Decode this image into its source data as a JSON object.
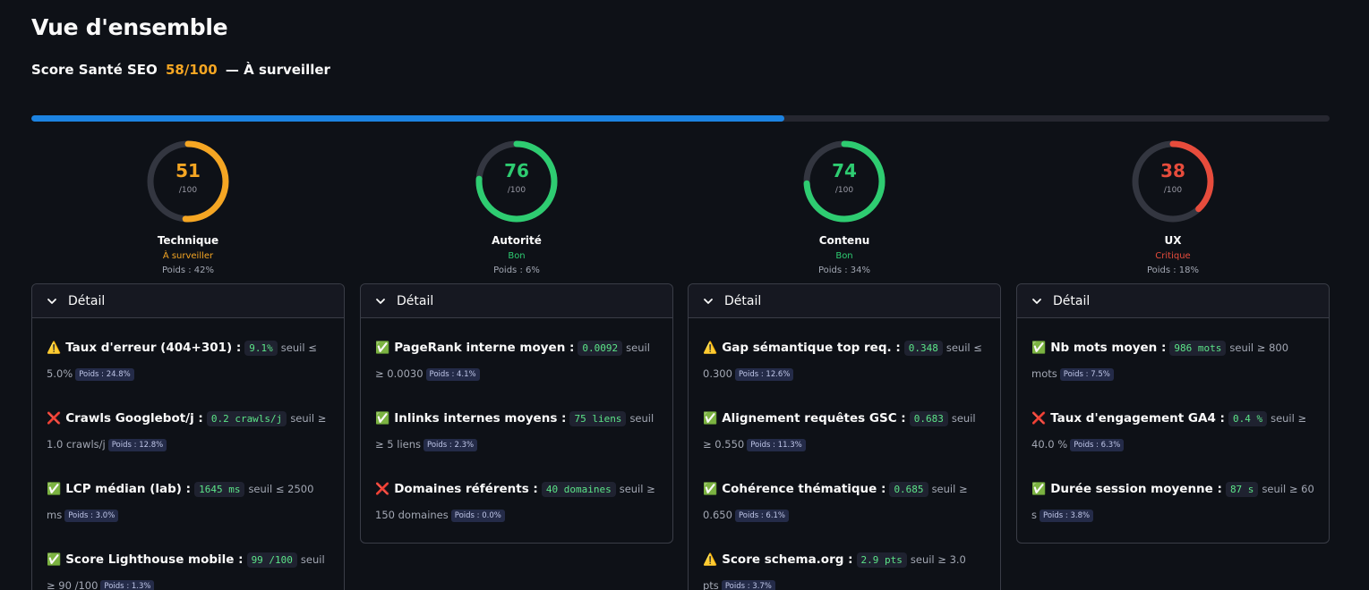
{
  "page": {
    "title": "Vue d'ensemble",
    "score_label": "Score Santé SEO",
    "score_value": "58/100",
    "score_separator": "—",
    "score_status": "À surveiller",
    "progress": 0.58,
    "progress_color": "#1c83e1"
  },
  "categories": [
    {
      "name": "Technique",
      "score": "51",
      "max": "/100",
      "value": 51,
      "status": "À surveiller",
      "color": "#f5a623",
      "weight": "Poids : 42%",
      "detail_label": "Détail",
      "metrics": [
        {
          "icon": "⚠️",
          "icon_name": "warning-icon",
          "name": "Taux d'erreur (404+301) :",
          "value": "9.1%",
          "threshold": "seuil ≤ 5.0%",
          "weight": "Poids : 24.8%"
        },
        {
          "icon": "❌",
          "icon_name": "cross-icon",
          "name": "Crawls Googlebot/j :",
          "value": "0.2 crawls/j",
          "threshold": "seuil ≥ 1.0 crawls/j",
          "weight": "Poids : 12.8%"
        },
        {
          "icon": "✅",
          "icon_name": "check-icon",
          "name": "LCP médian (lab) :",
          "value": "1645 ms",
          "threshold": "seuil ≤ 2500 ms",
          "weight": "Poids : 3.0%"
        },
        {
          "icon": "✅",
          "icon_name": "check-icon",
          "name": "Score Lighthouse mobile :",
          "value": "99 /100",
          "threshold": "seuil ≥ 90 /100",
          "weight": "Poids : 1.3%"
        }
      ]
    },
    {
      "name": "Autorité",
      "score": "76",
      "max": "/100",
      "value": 76,
      "status": "Bon",
      "color": "#2ecc71",
      "weight": "Poids : 6%",
      "detail_label": "Détail",
      "metrics": [
        {
          "icon": "✅",
          "icon_name": "check-icon",
          "name": "PageRank interne moyen :",
          "value": "0.0092",
          "threshold": "seuil ≥ 0.0030",
          "weight": "Poids : 4.1%"
        },
        {
          "icon": "✅",
          "icon_name": "check-icon",
          "name": "Inlinks internes moyens :",
          "value": "75 liens",
          "threshold": "seuil ≥ 5 liens",
          "weight": "Poids : 2.3%"
        },
        {
          "icon": "❌",
          "icon_name": "cross-icon",
          "name": "Domaines référents :",
          "value": "40 domaines",
          "threshold": "seuil ≥ 150 domaines",
          "weight": "Poids : 0.0%"
        }
      ]
    },
    {
      "name": "Contenu",
      "score": "74",
      "max": "/100",
      "value": 74,
      "status": "Bon",
      "color": "#2ecc71",
      "weight": "Poids : 34%",
      "detail_label": "Détail",
      "metrics": [
        {
          "icon": "⚠️",
          "icon_name": "warning-icon",
          "name": "Gap sémantique top req. :",
          "value": "0.348",
          "threshold": "seuil ≤ 0.300",
          "weight": "Poids : 12.6%"
        },
        {
          "icon": "✅",
          "icon_name": "check-icon",
          "name": "Alignement requêtes GSC :",
          "value": "0.683",
          "threshold": "seuil ≥ 0.550",
          "weight": "Poids : 11.3%"
        },
        {
          "icon": "✅",
          "icon_name": "check-icon",
          "name": "Cohérence thématique :",
          "value": "0.685",
          "threshold": "seuil ≥ 0.650",
          "weight": "Poids : 6.1%"
        },
        {
          "icon": "⚠️",
          "icon_name": "warning-icon",
          "name": "Score schema.org :",
          "value": "2.9 pts",
          "threshold": "seuil ≥ 3.0 pts",
          "weight": "Poids : 3.7%"
        }
      ]
    },
    {
      "name": "UX",
      "score": "38",
      "max": "/100",
      "value": 38,
      "status": "Critique",
      "color": "#e74c3c",
      "weight": "Poids : 18%",
      "detail_label": "Détail",
      "metrics": [
        {
          "icon": "✅",
          "icon_name": "check-icon",
          "name": "Nb mots moyen :",
          "value": "986 mots",
          "threshold": "seuil ≥ 800 mots",
          "weight": "Poids : 7.5%"
        },
        {
          "icon": "❌",
          "icon_name": "cross-icon",
          "name": "Taux d'engagement GA4 :",
          "value": "0.4 %",
          "threshold": "seuil ≥ 40.0 %",
          "weight": "Poids : 6.3%"
        },
        {
          "icon": "✅",
          "icon_name": "check-icon",
          "name": "Durée session moyenne :",
          "value": "87 s",
          "threshold": "seuil ≥ 60 s",
          "weight": "Poids : 3.8%"
        }
      ]
    }
  ]
}
